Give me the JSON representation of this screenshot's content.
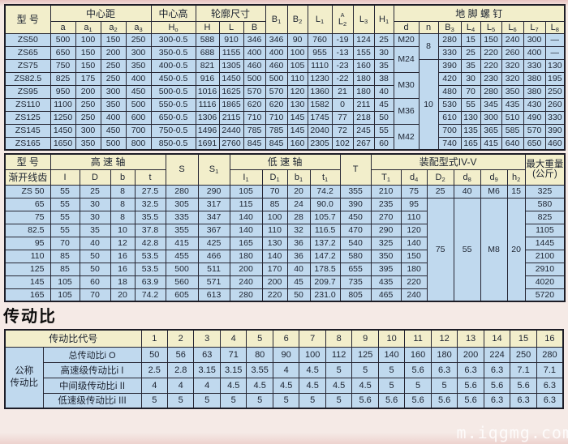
{
  "watermark": "m.iqgmg.com",
  "section_title": "传动比",
  "table1": {
    "header": {
      "model": "型 号",
      "center_distance": "中心距",
      "center_height": "中心高",
      "outline": "轮廓尺寸",
      "anchor_bolts": "地 脚 螺 钉",
      "a": "a",
      "a1": "a_1",
      "a2": "a_2",
      "a3": "a_3",
      "ho": "H_o",
      "h": "H",
      "l": "L",
      "b": "B",
      "b1": "B_1",
      "b2": "B_2",
      "l1": "L_1",
      "l2_sup": "A",
      "l2": "L_2",
      "l3": "L_3",
      "h1": "H_1",
      "d": "d",
      "n": "n",
      "b3": "B_3",
      "l4": "L_4",
      "l5": "L_5",
      "l6": "L_6",
      "l7": "L_7",
      "l8": "L_8"
    },
    "rows": [
      [
        "ZS50",
        "500",
        "100",
        "150",
        "250",
        "300-0.5",
        "588",
        "910",
        "346",
        "346",
        "90",
        "760",
        "-19",
        "124",
        "25",
        {
          "t": "M20"
        },
        {
          "t": "8",
          "rs": 2
        },
        "280",
        "15",
        "150",
        "240",
        "300",
        "—"
      ],
      [
        "ZS65",
        "650",
        "150",
        "200",
        "300",
        "350-0.5",
        "688",
        "1155",
        "400",
        "400",
        "100",
        "955",
        "-13",
        "155",
        "30",
        {
          "t": "M24",
          "rs": 2
        },
        null,
        "330",
        "25",
        "220",
        "260",
        "400",
        "—"
      ],
      [
        "ZS75",
        "750",
        "150",
        "250",
        "350",
        "400-0.5",
        "821",
        "1305",
        "460",
        "460",
        "105",
        "1110",
        "-23",
        "160",
        "35",
        null,
        {
          "t": "10",
          "rs": 7
        },
        "390",
        "35",
        "220",
        "320",
        "330",
        "130"
      ],
      [
        "ZS82.5",
        "825",
        "175",
        "250",
        "400",
        "450-0.5",
        "916",
        "1450",
        "500",
        "500",
        "110",
        "1230",
        "-22",
        "180",
        "38",
        {
          "t": "M30",
          "rs": 2
        },
        null,
        "420",
        "30",
        "230",
        "320",
        "380",
        "195"
      ],
      [
        "ZS95",
        "950",
        "200",
        "300",
        "450",
        "500-0.5",
        "1016",
        "1625",
        "570",
        "570",
        "120",
        "1360",
        "21",
        "180",
        "40",
        null,
        null,
        "480",
        "70",
        "280",
        "350",
        "380",
        "250"
      ],
      [
        "ZS110",
        "1100",
        "250",
        "350",
        "500",
        "550-0.5",
        "1116",
        "1865",
        "620",
        "620",
        "130",
        "1582",
        "0",
        "211",
        "45",
        {
          "t": "M36",
          "rs": 2
        },
        null,
        "530",
        "55",
        "345",
        "435",
        "430",
        "260"
      ],
      [
        "ZS125",
        "1250",
        "250",
        "400",
        "600",
        "650-0.5",
        "1306",
        "2115",
        "710",
        "710",
        "145",
        "1745",
        "77",
        "218",
        "50",
        null,
        null,
        "610",
        "130",
        "300",
        "510",
        "490",
        "330"
      ],
      [
        "ZS145",
        "1450",
        "300",
        "450",
        "700",
        "750-0.5",
        "1496",
        "2440",
        "785",
        "785",
        "145",
        "2040",
        "72",
        "245",
        "55",
        {
          "t": "M42",
          "rs": 2
        },
        null,
        "700",
        "135",
        "365",
        "585",
        "570",
        "390"
      ],
      [
        "ZS165",
        "1650",
        "350",
        "500",
        "800",
        "850-0.5",
        "1691",
        "2760",
        "845",
        "845",
        "160",
        "2305",
        "102",
        "267",
        "60",
        null,
        null,
        "740",
        "165",
        "415",
        "640",
        "650",
        "460"
      ]
    ]
  },
  "table2": {
    "header": {
      "model": "型 号",
      "model_sub": "渐开线齿",
      "high_speed_shaft": "高 速 轴",
      "low_speed_shaft": "低 速 轴",
      "assembly": "装配型式IV-V",
      "max_weight": "最大重量\n(公斤)",
      "i": "I",
      "d": "D",
      "b": "b",
      "t": "t",
      "s": "S",
      "s1": "S_1",
      "i1": "I_1",
      "d1": "D_1",
      "b1": "b_1",
      "t1": "t_1",
      "t_cap": "T",
      "t1_cap": "T_1",
      "d4": "d_4",
      "d2_cap": "D_2",
      "d8": "d_8",
      "d9": "d_9",
      "h2": "h_2"
    },
    "rows": [
      [
        "ZS 50",
        "55",
        "25",
        "8",
        "27.5",
        "280",
        "290",
        "105",
        "70",
        "20",
        "74.2",
        "355",
        "210",
        "75",
        "25",
        "40",
        "M6",
        "15",
        "325"
      ],
      [
        "65",
        "55",
        "30",
        "8",
        "32.5",
        "305",
        "317",
        "115",
        "85",
        "24",
        "90.0",
        "390",
        "235",
        "95",
        {
          "t": "75",
          "rs": 8
        },
        {
          "t": "55",
          "rs": 8
        },
        {
          "t": "M8",
          "rs": 8
        },
        {
          "t": "20",
          "rs": 8
        },
        "580"
      ],
      [
        "75",
        "55",
        "30",
        "8",
        "35.5",
        "335",
        "347",
        "140",
        "100",
        "28",
        "105.7",
        "450",
        "270",
        "110",
        null,
        null,
        null,
        null,
        "825"
      ],
      [
        "82.5",
        "55",
        "35",
        "10",
        "37.8",
        "355",
        "367",
        "140",
        "110",
        "32",
        "116.5",
        "470",
        "290",
        "120",
        null,
        null,
        null,
        null,
        "1105"
      ],
      [
        "95",
        "70",
        "40",
        "12",
        "42.8",
        "415",
        "425",
        "165",
        "130",
        "36",
        "137.2",
        "540",
        "325",
        "140",
        null,
        null,
        null,
        null,
        "1445"
      ],
      [
        "110",
        "85",
        "50",
        "16",
        "53.5",
        "455",
        "466",
        "180",
        "140",
        "36",
        "147.2",
        "580",
        "350",
        "150",
        null,
        null,
        null,
        null,
        "2100"
      ],
      [
        "125",
        "85",
        "50",
        "16",
        "53.5",
        "500",
        "511",
        "200",
        "170",
        "40",
        "178.5",
        "655",
        "395",
        "180",
        null,
        null,
        null,
        null,
        "2910"
      ],
      [
        "145",
        "105",
        "60",
        "18",
        "63.9",
        "560",
        "571",
        "240",
        "200",
        "45",
        "209.7",
        "735",
        "435",
        "220",
        null,
        null,
        null,
        null,
        "4020"
      ],
      [
        "165",
        "105",
        "70",
        "20",
        "74.2",
        "605",
        "613",
        "280",
        "220",
        "50",
        "231.0",
        "805",
        "465",
        "240",
        null,
        null,
        null,
        null,
        "5720"
      ]
    ]
  },
  "table3": {
    "header_label": "传动比代号",
    "codes": [
      "1",
      "2",
      "3",
      "4",
      "5",
      "6",
      "7",
      "8",
      "9",
      "10",
      "11",
      "12",
      "13",
      "14",
      "15",
      "16"
    ],
    "rows": [
      [
        {
          "t": "公称\n传动比",
          "rs": 4,
          "cls": "grp"
        },
        "总传动比i O",
        "50",
        "56",
        "63",
        "71",
        "80",
        "90",
        "100",
        "112",
        "125",
        "140",
        "160",
        "180",
        "200",
        "224",
        "250",
        "280"
      ],
      [
        "高速级传动比i I",
        "2.5",
        "2.8",
        "3.15",
        "3.15",
        "3.55",
        "4",
        "4.5",
        "5",
        "5",
        "5",
        "5.6",
        "6.3",
        "6.3",
        "6.3",
        "7.1",
        "7.1"
      ],
      [
        "中间级传动比i II",
        "4",
        "4",
        "4",
        "4.5",
        "4.5",
        "4.5",
        "4.5",
        "4.5",
        "4.5",
        "5",
        "5",
        "5",
        "5.6",
        "5.6",
        "5.6",
        "6.3"
      ],
      [
        "低速级传动比i III",
        "5",
        "5",
        "5",
        "5",
        "5",
        "5",
        "5",
        "5",
        "5.6",
        "5.6",
        "5.6",
        "5.6",
        "5.6",
        "6.3",
        "6.3",
        "6.3"
      ]
    ]
  }
}
